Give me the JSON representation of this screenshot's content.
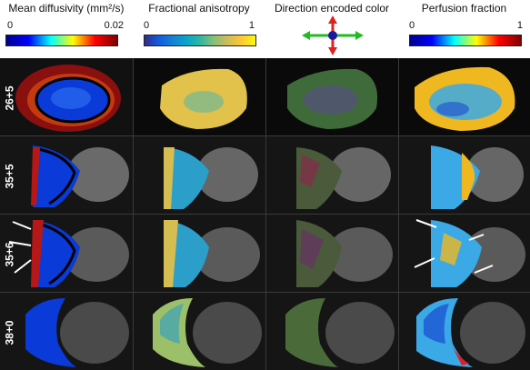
{
  "columns": [
    {
      "title": "Mean diffusivity (mm²/s)",
      "min": "0",
      "max": "0.02",
      "colormap": "jet-dark"
    },
    {
      "title": "Fractional anisotropy",
      "min": "0",
      "max": "1",
      "colormap": "parula"
    },
    {
      "title": "Direction encoded color",
      "colormap": "direction"
    },
    {
      "title": "Perfusion fraction",
      "min": "0",
      "max": "1",
      "colormap": "jet"
    }
  ],
  "rows": [
    {
      "label": "26+5"
    },
    {
      "label": "35+5"
    },
    {
      "label": "35+6"
    },
    {
      "label": "38+0"
    }
  ],
  "colors": {
    "direction_left_right": "#22bb22",
    "direction_up_down": "#dd2222",
    "direction_center": "#1a1aa0"
  }
}
